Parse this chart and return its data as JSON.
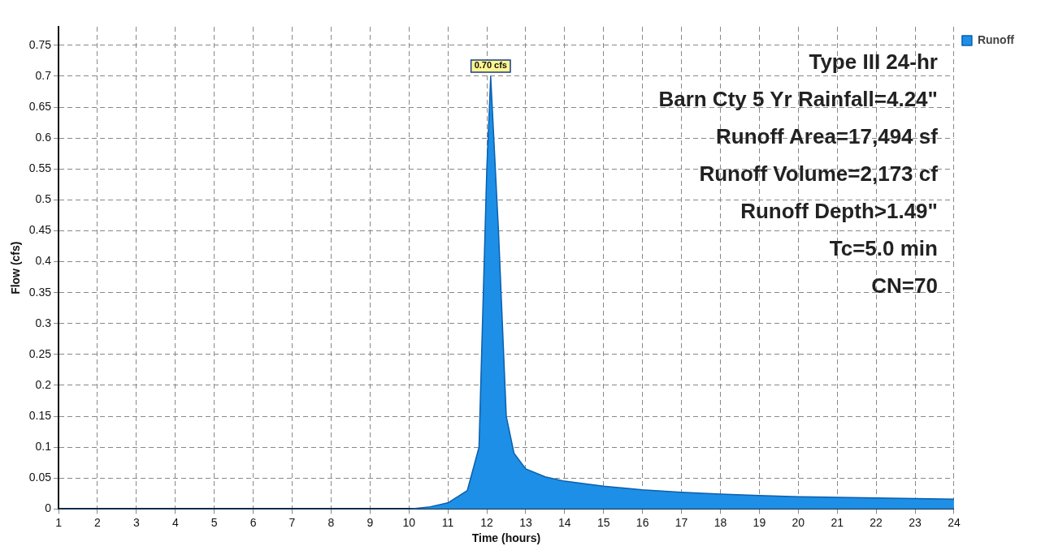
{
  "chart_data": {
    "type": "area",
    "xlabel": "Time (hours)",
    "ylabel": "Flow (cfs)",
    "series": [
      {
        "name": "Runoff",
        "color": "#1e8fe6",
        "x": [
          1,
          2,
          3,
          4,
          5,
          6,
          7,
          8,
          9,
          10,
          10.5,
          11,
          11.5,
          11.8,
          12,
          12.1,
          12.3,
          12.5,
          12.7,
          13,
          13.5,
          14,
          15,
          16,
          17,
          18,
          19,
          20,
          21,
          22,
          23,
          24
        ],
        "values": [
          0,
          0,
          0,
          0,
          0,
          0,
          0,
          0,
          0,
          0,
          0.003,
          0.01,
          0.03,
          0.1,
          0.55,
          0.7,
          0.45,
          0.15,
          0.09,
          0.065,
          0.052,
          0.045,
          0.037,
          0.031,
          0.027,
          0.024,
          0.022,
          0.02,
          0.019,
          0.018,
          0.017,
          0.016
        ]
      }
    ],
    "xlim": [
      1,
      24
    ],
    "xticks": [
      1,
      2,
      3,
      4,
      5,
      6,
      7,
      8,
      9,
      10,
      11,
      12,
      13,
      14,
      15,
      16,
      17,
      18,
      19,
      20,
      21,
      22,
      23,
      24
    ],
    "ylim": [
      0,
      0.78
    ],
    "yticks": [
      0,
      0.05,
      0.1,
      0.15,
      0.2,
      0.25,
      0.3,
      0.35,
      0.4,
      0.45,
      0.5,
      0.55,
      0.6,
      0.65,
      0.7,
      0.75
    ],
    "grid": true,
    "line_style": "dashed",
    "legend": "top right",
    "marker": "none",
    "annotations": [
      {
        "text": "0.70 cfs",
        "x": 12.1,
        "y": 0.7
      },
      "Type III 24-hr",
      "Barn Cty 5 Yr Rainfall=4.24\"",
      "Runoff Area=17,494 sf",
      "Runoff Volume=2,173 cf",
      "Runoff Depth>1.49\"",
      "Tc=5.0 min",
      "CN=70"
    ]
  }
}
